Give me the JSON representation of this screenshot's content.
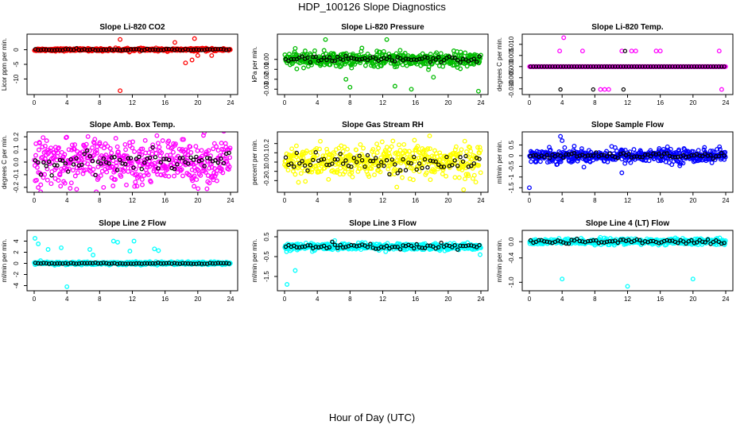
{
  "title": "HDP_100126  Slope Diagnostics",
  "xlabel": "Hour of Day (UTC)",
  "chart_data": [
    {
      "type": "scatter",
      "title": "Slope Li-820 CO2",
      "ylabel": "Licor ppm per min.",
      "xlim": [
        0,
        24
      ],
      "ylim": [
        -14.5,
        4.5
      ],
      "xticks": [
        0,
        4,
        8,
        12,
        16,
        20,
        24
      ],
      "yticks": [
        0,
        -5,
        -10
      ],
      "ytick_labels": [
        "0",
        "-5",
        "-10"
      ],
      "color": "#ff0000",
      "base": 0,
      "spread": 0.5,
      "outliers": [
        [
          10.5,
          3.5
        ],
        [
          10.5,
          -14
        ],
        [
          17.2,
          2.5
        ],
        [
          18.5,
          -4.5
        ],
        [
          19.3,
          -3.5
        ],
        [
          19.6,
          3.8
        ],
        [
          20.0,
          -2
        ],
        [
          21.7,
          -2
        ]
      ],
      "mean_spread": 0.3
    },
    {
      "type": "scatter",
      "title": "Slope Li-820 Pressure",
      "ylabel": "kPa per min.",
      "xlim": [
        0,
        24
      ],
      "ylim": [
        -0.033,
        0.023
      ],
      "xticks": [
        0,
        4,
        8,
        12,
        16,
        20,
        24
      ],
      "yticks": [
        0.0,
        -0.01,
        -0.02,
        -0.03
      ],
      "ytick_labels": [
        "0.00",
        "-0.01",
        "-0.02",
        "-0.03"
      ],
      "color": "#00bb00",
      "base": 0,
      "spread": 0.008,
      "outliers": [
        [
          8,
          -0.028
        ],
        [
          13.5,
          -0.027
        ],
        [
          15.5,
          -0.03
        ],
        [
          23.7,
          -0.032
        ],
        [
          5,
          0.02
        ],
        [
          12.5,
          0.02
        ],
        [
          7.5,
          -0.02
        ],
        [
          18.2,
          -0.018
        ]
      ],
      "mean_spread": 0.003
    },
    {
      "type": "scatter",
      "title": "Slope Li-820 Temp.",
      "ylabel": "degrees C per min.",
      "xlim": [
        0,
        24
      ],
      "ylim": [
        -0.0115,
        0.0135
      ],
      "xticks": [
        0,
        4,
        8,
        12,
        16,
        20,
        24
      ],
      "yticks": [
        0.01,
        0.005,
        0.0,
        -0.005,
        -0.01
      ],
      "ytick_labels": [
        "0.010",
        "0.005",
        "0.000",
        "-0.005",
        "-0.010"
      ],
      "color": "#ff00ff",
      "base": 0,
      "spread": 0,
      "outliers": [
        [
          4.2,
          0.013
        ],
        [
          3.7,
          0.007
        ],
        [
          6.5,
          0.007
        ],
        [
          11.3,
          0.007
        ],
        [
          12.5,
          0.007
        ],
        [
          13.0,
          0.007
        ],
        [
          15.5,
          0.007
        ],
        [
          16.0,
          0.007
        ],
        [
          23.2,
          0.007
        ],
        [
          8.7,
          -0.0103
        ],
        [
          9.2,
          -0.0103
        ],
        [
          9.7,
          -0.0103
        ],
        [
          23.5,
          -0.0103
        ]
      ],
      "means_outliers": [
        [
          3.8,
          -0.0103
        ],
        [
          7.8,
          -0.0103
        ],
        [
          11.5,
          -0.0103
        ],
        [
          11.7,
          0.007
        ]
      ],
      "mean_spread": 0
    },
    {
      "type": "scatter",
      "title": "Slope Amb. Box Temp.",
      "ylabel": "degrees C per min.",
      "xlim": [
        0,
        24
      ],
      "ylim": [
        -0.22,
        0.22
      ],
      "xticks": [
        0,
        4,
        8,
        12,
        16,
        20,
        24
      ],
      "yticks": [
        0.2,
        0.1,
        0.0,
        -0.1,
        -0.2
      ],
      "ytick_labels": [
        "0.2",
        "0.1",
        "0.0",
        "-0.1",
        "-0.2"
      ],
      "color": "#ff00ff",
      "base": 0,
      "spread": 0.2,
      "outliers": [],
      "mean_spread": 0.08
    },
    {
      "type": "scatter",
      "title": "Slope Gas Stream RH",
      "ylabel": "percent per min.",
      "xlim": [
        0,
        24
      ],
      "ylim": [
        -0.3,
        0.3
      ],
      "xticks": [
        0,
        4,
        8,
        12,
        16,
        20,
        24
      ],
      "yticks": [
        0.2,
        0.1,
        0.0,
        -0.1,
        -0.2
      ],
      "ytick_labels": [
        "0.2",
        "0.1",
        "0.0",
        "-0.1",
        "-0.2"
      ],
      "color": "#ffff00",
      "base": 0,
      "spread": 0.2,
      "outliers": [],
      "mean_spread": 0.1
    },
    {
      "type": "scatter",
      "title": "Slope Sample Flow",
      "ylabel": "ml/min per min.",
      "xlim": [
        0,
        24
      ],
      "ylim": [
        -1.6,
        1.0
      ],
      "xticks": [
        0,
        4,
        8,
        12,
        16,
        20,
        24
      ],
      "yticks": [
        0.5,
        0.0,
        -0.5,
        -1.0,
        -1.5
      ],
      "ytick_labels": [
        "0.5",
        "0",
        "-0.5",
        "-1",
        "-1.5"
      ],
      "color": "#0000ff",
      "base": 0,
      "spread": 0.35,
      "outliers": [
        [
          0,
          -1.5
        ],
        [
          4,
          0.7
        ],
        [
          3.8,
          0.9
        ],
        [
          11.3,
          -0.8
        ]
      ],
      "mean_spread": 0.12
    },
    {
      "type": "scatter",
      "title": "Slope Line 2 Flow",
      "ylabel": "ml/min per min.",
      "xlim": [
        0,
        24
      ],
      "ylim": [
        -4.5,
        5.5
      ],
      "xticks": [
        0,
        4,
        8,
        12,
        16,
        20,
        24
      ],
      "yticks": [
        4,
        2,
        0,
        -2,
        -4
      ],
      "ytick_labels": [
        "4",
        "2",
        "0",
        "-2",
        "-4"
      ],
      "color": "#00ffff",
      "base": 0,
      "spread": 0.3,
      "outliers": [
        [
          0.1,
          4.5
        ],
        [
          0.5,
          3.5
        ],
        [
          1.7,
          2.5
        ],
        [
          3.3,
          2.8
        ],
        [
          4.0,
          -4.2
        ],
        [
          6.8,
          2.5
        ],
        [
          7.2,
          1.5
        ],
        [
          9.7,
          4.0
        ],
        [
          10.2,
          3.8
        ],
        [
          12.2,
          4.0
        ],
        [
          11.7,
          2.2
        ],
        [
          14.7,
          2.6
        ],
        [
          15.2,
          2.3
        ]
      ],
      "mean_spread": 0.1
    },
    {
      "type": "scatter",
      "title": "Slope Line 3 Flow",
      "ylabel": "ml/min per min.",
      "xlim": [
        0,
        24
      ],
      "ylim": [
        -2.1,
        0.7
      ],
      "xticks": [
        0,
        4,
        8,
        12,
        16,
        20,
        24
      ],
      "yticks": [
        0.5,
        -0.5,
        -1.5
      ],
      "ytick_labels": [
        "0.5",
        "-0.5",
        "-1.5"
      ],
      "color": "#00ffff",
      "base": 0,
      "spread": 0.18,
      "outliers": [
        [
          0.3,
          -1.9
        ],
        [
          1.3,
          -1.2
        ],
        [
          23.9,
          -0.4
        ]
      ],
      "mean_spread": 0.15
    },
    {
      "type": "scatter",
      "title": "Slope Line 4 (LT) Flow",
      "ylabel": "ml/min per min.",
      "xlim": [
        0,
        24
      ],
      "ylim": [
        -1.15,
        0.22
      ],
      "xticks": [
        0,
        4,
        8,
        12,
        16,
        20,
        24
      ],
      "yticks": [
        0.0,
        -0.4,
        -1.0
      ],
      "ytick_labels": [
        "0.0",
        "-0.4",
        "-1.0"
      ],
      "color": "#00ffff",
      "base": 0,
      "spread": 0.08,
      "outliers": [
        [
          4,
          -0.92
        ],
        [
          12,
          -1.1
        ],
        [
          20,
          -0.92
        ]
      ],
      "mean_spread": 0.06
    }
  ]
}
